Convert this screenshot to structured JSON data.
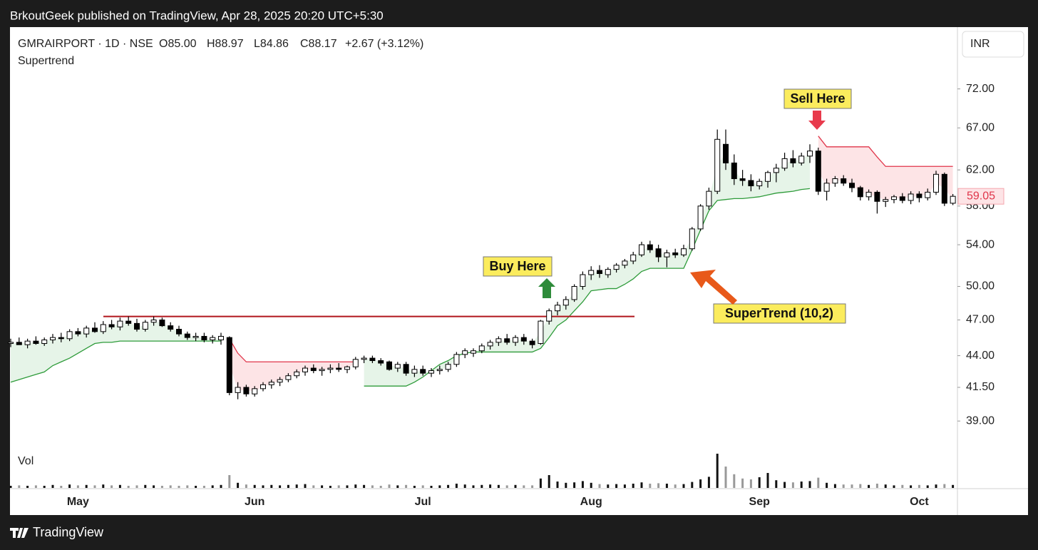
{
  "publisher": "BrkoutGeek published on TradingView, Apr 28, 2025 20:20 UTC+5:30",
  "brand": "TradingView",
  "chart_data": {
    "type": "candlestick",
    "symbol": "GMRAIRPORT · 1D · NSE",
    "ohlc_text": [
      "O85.00",
      "H88.97",
      "L84.86",
      "C88.17",
      "+2.67 (+3.12%)"
    ],
    "currency": "INR",
    "volume_label": "Vol",
    "log_scale": true,
    "up_color": "#ffffff",
    "down_color": "#000000",
    "ylim": [
      37.4,
      80.7
    ],
    "yticks": [
      {
        "value": 72,
        "label": "72.00"
      },
      {
        "value": 67,
        "label": "67.00"
      },
      {
        "value": 62,
        "label": "62.00"
      },
      {
        "value": 58,
        "label": "58.00"
      },
      {
        "value": 54,
        "label": "54.00"
      },
      {
        "value": 50,
        "label": "50.00"
      },
      {
        "value": 47,
        "label": "47.00"
      },
      {
        "value": 44,
        "label": "44.00"
      },
      {
        "value": 41.5,
        "label": "41.50"
      },
      {
        "value": 39,
        "label": "39.00"
      }
    ],
    "categories": [
      null,
      null,
      null,
      null,
      null,
      null,
      null,
      null,
      "May",
      null,
      null,
      null,
      null,
      null,
      null,
      null,
      null,
      null,
      null,
      null,
      null,
      null,
      null,
      null,
      null,
      null,
      null,
      null,
      null,
      "Jun",
      null,
      null,
      null,
      null,
      null,
      null,
      null,
      null,
      null,
      null,
      null,
      null,
      null,
      null,
      null,
      null,
      null,
      null,
      null,
      "Jul",
      null,
      null,
      null,
      null,
      null,
      null,
      null,
      null,
      null,
      null,
      null,
      null,
      null,
      null,
      null,
      null,
      null,
      null,
      null,
      "Aug",
      null,
      null,
      null,
      null,
      null,
      null,
      null,
      null,
      null,
      null,
      null,
      null,
      null,
      null,
      null,
      null,
      null,
      null,
      null,
      "Sep",
      null,
      null,
      null,
      null,
      null,
      null,
      null,
      null,
      null,
      null,
      null,
      null,
      null,
      null,
      null,
      null,
      null,
      null,
      "Oct",
      null,
      null,
      null,
      null
    ],
    "ohlc": [
      [
        45.0,
        45.4,
        44.7,
        45.1
      ],
      [
        45.1,
        45.5,
        44.9,
        44.9
      ],
      [
        44.9,
        45.4,
        44.6,
        45.2
      ],
      [
        45.2,
        45.6,
        44.9,
        45.0
      ],
      [
        45.0,
        45.5,
        44.8,
        45.3
      ],
      [
        45.3,
        45.8,
        45.0,
        45.5
      ],
      [
        45.5,
        45.9,
        45.1,
        45.4
      ],
      [
        45.4,
        46.2,
        45.2,
        46.0
      ],
      [
        46.0,
        46.3,
        45.6,
        45.8
      ],
      [
        45.8,
        46.5,
        45.5,
        46.3
      ],
      [
        46.3,
        46.8,
        45.9,
        46.0
      ],
      [
        46.0,
        46.9,
        45.8,
        46.6
      ],
      [
        46.6,
        47.0,
        46.2,
        46.4
      ],
      [
        46.4,
        47.2,
        46.1,
        46.9
      ],
      [
        46.9,
        47.3,
        46.5,
        46.7
      ],
      [
        46.7,
        47.1,
        46.0,
        46.2
      ],
      [
        46.2,
        47.0,
        46.0,
        46.8
      ],
      [
        46.8,
        47.3,
        46.5,
        47.0
      ],
      [
        47.0,
        47.2,
        46.4,
        46.5
      ],
      [
        46.5,
        46.8,
        46.0,
        46.2
      ],
      [
        46.2,
        46.5,
        45.6,
        45.8
      ],
      [
        45.8,
        46.0,
        45.3,
        45.5
      ],
      [
        45.5,
        45.9,
        45.2,
        45.6
      ],
      [
        45.6,
        45.9,
        45.1,
        45.3
      ],
      [
        45.3,
        45.7,
        45.0,
        45.5
      ],
      [
        45.3,
        45.9,
        44.9,
        45.6
      ],
      [
        45.5,
        45.6,
        40.9,
        41.1
      ],
      [
        41.1,
        41.9,
        40.6,
        41.5
      ],
      [
        41.5,
        41.7,
        40.8,
        41.0
      ],
      [
        41.0,
        41.6,
        40.8,
        41.4
      ],
      [
        41.4,
        41.9,
        41.2,
        41.7
      ],
      [
        41.7,
        42.1,
        41.4,
        41.9
      ],
      [
        41.9,
        42.3,
        41.6,
        42.1
      ],
      [
        42.1,
        42.6,
        41.9,
        42.4
      ],
      [
        42.4,
        42.9,
        42.2,
        42.7
      ],
      [
        42.7,
        43.2,
        42.4,
        43.0
      ],
      [
        43.0,
        43.3,
        42.6,
        42.8
      ],
      [
        42.8,
        43.1,
        42.4,
        42.9
      ],
      [
        42.9,
        43.3,
        42.6,
        43.0
      ],
      [
        43.0,
        43.4,
        42.7,
        42.9
      ],
      [
        42.9,
        43.2,
        42.6,
        43.1
      ],
      [
        43.1,
        43.9,
        42.9,
        43.7
      ],
      [
        43.7,
        44.0,
        43.4,
        43.8
      ],
      [
        43.8,
        44.0,
        43.4,
        43.6
      ],
      [
        43.6,
        43.8,
        43.2,
        43.4
      ],
      [
        43.5,
        43.6,
        42.8,
        42.9
      ],
      [
        43.0,
        43.5,
        42.7,
        43.3
      ],
      [
        43.3,
        43.5,
        42.4,
        42.6
      ],
      [
        42.6,
        43.2,
        42.3,
        42.9
      ],
      [
        42.9,
        43.2,
        42.4,
        42.6
      ],
      [
        42.6,
        43.0,
        42.3,
        42.8
      ],
      [
        42.8,
        43.2,
        42.5,
        42.9
      ],
      [
        42.9,
        43.5,
        42.7,
        43.3
      ],
      [
        43.3,
        44.3,
        43.1,
        44.1
      ],
      [
        44.1,
        44.6,
        43.8,
        44.4
      ],
      [
        44.2,
        44.6,
        43.9,
        44.4
      ],
      [
        44.4,
        45.0,
        44.2,
        44.8
      ],
      [
        44.8,
        45.3,
        44.5,
        45.1
      ],
      [
        45.1,
        45.6,
        44.8,
        45.4
      ],
      [
        45.4,
        45.8,
        44.9,
        45.1
      ],
      [
        45.1,
        45.7,
        44.8,
        45.5
      ],
      [
        45.5,
        45.8,
        44.9,
        45.2
      ],
      [
        45.2,
        45.4,
        44.6,
        44.9
      ],
      [
        45.0,
        47.0,
        44.9,
        46.9
      ],
      [
        46.9,
        48.0,
        46.6,
        47.8
      ],
      [
        47.8,
        48.6,
        47.4,
        48.3
      ],
      [
        48.3,
        49.1,
        47.9,
        48.8
      ],
      [
        48.8,
        50.2,
        48.6,
        50.0
      ],
      [
        50.0,
        51.4,
        49.7,
        51.1
      ],
      [
        51.1,
        51.9,
        50.6,
        51.5
      ],
      [
        51.5,
        52.0,
        50.8,
        51.2
      ],
      [
        51.1,
        51.8,
        50.8,
        51.6
      ],
      [
        51.6,
        52.2,
        51.3,
        52.0
      ],
      [
        52.0,
        52.6,
        51.7,
        52.4
      ],
      [
        52.4,
        53.3,
        52.1,
        53.0
      ],
      [
        53.0,
        54.3,
        52.8,
        54.0
      ],
      [
        54.0,
        54.4,
        53.2,
        53.5
      ],
      [
        53.6,
        54.0,
        52.3,
        52.8
      ],
      [
        52.8,
        53.5,
        51.8,
        53.2
      ],
      [
        53.2,
        53.6,
        52.7,
        53.0
      ],
      [
        53.0,
        54.0,
        52.8,
        53.6
      ],
      [
        53.6,
        55.8,
        53.4,
        55.6
      ],
      [
        55.6,
        58.2,
        55.4,
        58.0
      ],
      [
        58.0,
        60.0,
        57.6,
        59.6
      ],
      [
        59.6,
        66.8,
        59.3,
        65.6
      ],
      [
        65.0,
        66.8,
        62.0,
        62.8
      ],
      [
        62.8,
        63.8,
        60.3,
        61.0
      ],
      [
        61.0,
        62.0,
        60.2,
        60.8
      ],
      [
        60.8,
        61.5,
        59.6,
        60.2
      ],
      [
        60.2,
        61.0,
        59.8,
        60.7
      ],
      [
        60.7,
        61.9,
        60.0,
        61.7
      ],
      [
        61.7,
        62.7,
        60.6,
        62.2
      ],
      [
        62.2,
        64.0,
        61.9,
        63.3
      ],
      [
        63.3,
        64.3,
        62.3,
        62.8
      ],
      [
        62.8,
        64.0,
        62.5,
        63.6
      ],
      [
        63.6,
        65.0,
        62.8,
        64.2
      ],
      [
        64.2,
        64.6,
        59.2,
        59.6
      ],
      [
        59.6,
        61.0,
        58.6,
        60.5
      ],
      [
        60.5,
        61.3,
        60.1,
        61.0
      ],
      [
        61.0,
        61.4,
        60.2,
        60.5
      ],
      [
        60.5,
        61.0,
        59.5,
        60.0
      ],
      [
        60.0,
        60.2,
        58.6,
        59.0
      ],
      [
        59.0,
        59.8,
        58.6,
        59.5
      ],
      [
        59.5,
        59.7,
        57.2,
        58.5
      ],
      [
        58.5,
        59.0,
        57.9,
        58.7
      ],
      [
        58.7,
        59.2,
        58.3,
        59.0
      ],
      [
        59.0,
        59.4,
        58.3,
        58.6
      ],
      [
        58.6,
        59.6,
        58.2,
        59.3
      ],
      [
        59.3,
        59.6,
        58.4,
        58.9
      ],
      [
        58.9,
        59.9,
        58.6,
        59.5
      ],
      [
        59.5,
        61.9,
        59.2,
        61.5
      ],
      [
        61.5,
        61.7,
        58.0,
        58.3
      ],
      [
        58.3,
        59.3,
        58.1,
        59.05
      ]
    ],
    "last_label": "59.05",
    "volume_ylim": [
      0,
      9
    ],
    "volume": [
      0.5,
      0.6,
      0.5,
      0.6,
      0.5,
      0.7,
      0.5,
      0.8,
      0.6,
      0.7,
      0.6,
      0.8,
      0.6,
      0.7,
      0.5,
      0.6,
      0.7,
      0.6,
      0.5,
      0.6,
      0.5,
      0.6,
      0.5,
      0.5,
      0.6,
      0.7,
      3.0,
      1.2,
      0.8,
      0.7,
      0.6,
      0.7,
      0.6,
      0.7,
      0.8,
      0.9,
      0.6,
      0.6,
      0.5,
      0.6,
      0.6,
      0.8,
      0.7,
      0.6,
      0.5,
      0.8,
      0.6,
      0.7,
      0.5,
      0.6,
      0.5,
      0.6,
      0.7,
      1.0,
      0.8,
      0.6,
      0.7,
      0.8,
      0.7,
      0.6,
      0.7,
      0.6,
      0.6,
      2.2,
      3.0,
      1.5,
      1.2,
      1.3,
      1.6,
      1.2,
      0.9,
      0.8,
      0.9,
      0.8,
      1.0,
      1.3,
      1.0,
      1.1,
      1.0,
      0.8,
      0.9,
      1.4,
      2.0,
      2.6,
      8.0,
      5.0,
      3.2,
      2.2,
      2.0,
      2.5,
      3.5,
      1.8,
      1.4,
      1.3,
      1.5,
      1.6,
      2.4,
      1.2,
      0.9,
      0.8,
      0.8,
      0.9,
      0.7,
      1.0,
      0.8,
      0.6,
      0.7,
      0.6,
      0.7,
      0.6,
      0.8,
      0.9,
      0.7
    ],
    "supertrend": {
      "name": "Supertrend",
      "up_color": "#2e9b3a",
      "down_color": "#e0354a",
      "up_fill": "#e6f4e8",
      "down_fill": "#fde4e6",
      "up": [
        41.9,
        42.1,
        42.3,
        42.5,
        42.7,
        43.2,
        43.5,
        43.8,
        44.2,
        44.6,
        45.0,
        45.1,
        45.1,
        45.2,
        45.2,
        45.2,
        45.2,
        45.2,
        45.2,
        45.2,
        45.2,
        45.2,
        45.2,
        45.2,
        45.2,
        45.2,
        null,
        null,
        null,
        null,
        null,
        null,
        null,
        null,
        null,
        null,
        null,
        null,
        null,
        null,
        null,
        null,
        41.6,
        41.6,
        41.6,
        41.6,
        41.6,
        41.6,
        41.9,
        42.3,
        42.8,
        43.3,
        43.6,
        44.0,
        44.2,
        44.3,
        44.3,
        44.3,
        44.3,
        44.3,
        44.3,
        44.3,
        44.3,
        44.6,
        45.5,
        46.5,
        47.0,
        47.8,
        48.6,
        49.6,
        49.7,
        49.8,
        49.8,
        50.2,
        50.7,
        51.4,
        51.7,
        51.7,
        51.7,
        51.7,
        51.7,
        53.5,
        55.5,
        57.5,
        58.6,
        58.7,
        58.8,
        58.8,
        58.9,
        59.0,
        59.2,
        59.4,
        59.5,
        59.6,
        59.8,
        59.9,
        null,
        null,
        null,
        null,
        null,
        null,
        null,
        null,
        null,
        null,
        null,
        null,
        null,
        null,
        null,
        null,
        null
      ],
      "down": [
        null,
        null,
        null,
        null,
        null,
        null,
        null,
        null,
        null,
        null,
        null,
        null,
        null,
        null,
        null,
        null,
        null,
        null,
        null,
        null,
        null,
        null,
        null,
        null,
        null,
        null,
        45.4,
        44.2,
        43.5,
        43.5,
        43.5,
        43.5,
        43.5,
        43.5,
        43.5,
        43.5,
        43.5,
        43.5,
        43.5,
        43.5,
        43.5,
        43.5,
        null,
        null,
        null,
        null,
        null,
        null,
        null,
        null,
        null,
        null,
        null,
        null,
        null,
        null,
        null,
        null,
        null,
        null,
        null,
        null,
        null,
        null,
        null,
        null,
        null,
        null,
        null,
        null,
        null,
        null,
        null,
        null,
        null,
        null,
        null,
        null,
        null,
        null,
        null,
        null,
        null,
        null,
        null,
        null,
        null,
        null,
        null,
        null,
        null,
        null,
        null,
        null,
        null,
        null,
        66.0,
        64.7,
        64.7,
        64.7,
        64.7,
        64.7,
        64.7,
        63.5,
        62.4,
        62.4,
        62.4,
        62.4,
        62.4,
        62.4,
        62.4,
        62.4,
        62.4
      ]
    },
    "resistance": {
      "value": 47.3,
      "color": "#b0151b"
    },
    "annotations": {
      "buy": "Buy Here",
      "sell": "Sell Here",
      "indicator": "SuperTrend (10,2)"
    }
  }
}
